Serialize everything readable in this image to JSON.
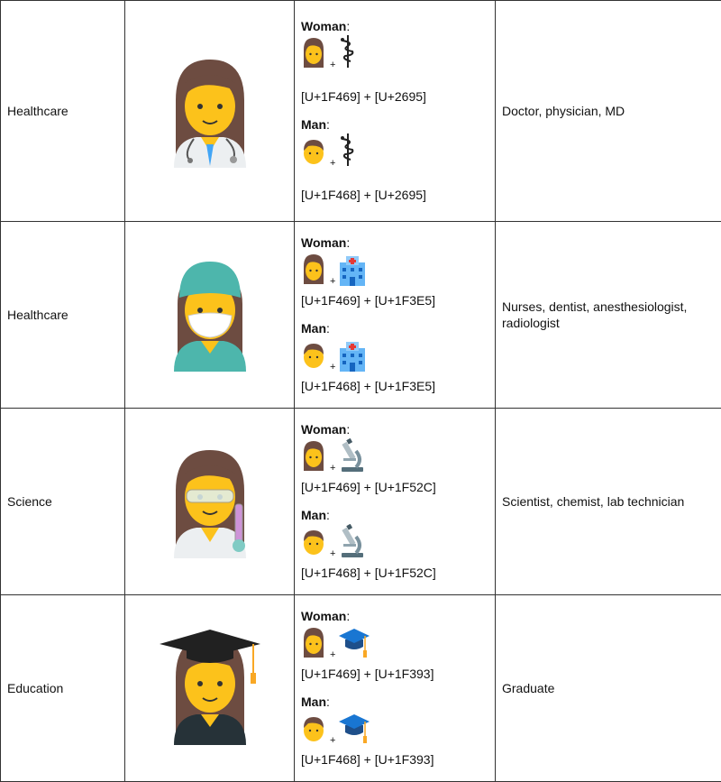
{
  "rows": [
    {
      "category": "Healthcare",
      "illustration": "woman-health-worker-icon",
      "woman": {
        "label": "Woman",
        "colon": ":",
        "icon": "staff-of-aesculapius-icon",
        "code": "[U+1F469] + [U+2695]"
      },
      "man": {
        "label": "Man",
        "colon": ":",
        "icon": "staff-of-aesculapius-icon",
        "code": "[U+1F468] + [U+2695]"
      },
      "description": "Doctor, physician, MD"
    },
    {
      "category": "Healthcare",
      "illustration": "woman-surgeon-icon",
      "woman": {
        "label": "Woman",
        "colon": ":",
        "icon": "hospital-icon",
        "code": "[U+1F469] + [U+1F3E5]"
      },
      "man": {
        "label": "Man",
        "colon": ":",
        "icon": "hospital-icon",
        "code": "[U+1F468] + [U+1F3E5]"
      },
      "description": "Nurses, dentist, anesthesiologist, radiologist"
    },
    {
      "category": "Science",
      "illustration": "woman-scientist-icon",
      "woman": {
        "label": "Woman",
        "colon": ":",
        "icon": "microscope-icon",
        "code": "[U+1F469] + [U+1F52C]"
      },
      "man": {
        "label": "Man",
        "colon": ":",
        "icon": "microscope-icon",
        "code": "[U+1F468] + [U+1F52C]"
      },
      "description": "Scientist, chemist, lab technician"
    },
    {
      "category": "Education",
      "illustration": "woman-graduate-icon",
      "woman": {
        "label": "Woman",
        "colon": ":",
        "icon": "graduation-cap-icon",
        "code": "[U+1F469] + [U+1F393]"
      },
      "man": {
        "label": "Man",
        "colon": ":",
        "icon": "graduation-cap-icon",
        "code": "[U+1F468] + [U+1F393]"
      },
      "description": "Graduate"
    }
  ],
  "plus": "+",
  "colors": {
    "hair": "#6d4c41",
    "skin": "#fcc21b",
    "teal": "#4db6ac",
    "blue": "#42a5f5",
    "navy": "#1e4f8a",
    "border": "#333333"
  }
}
